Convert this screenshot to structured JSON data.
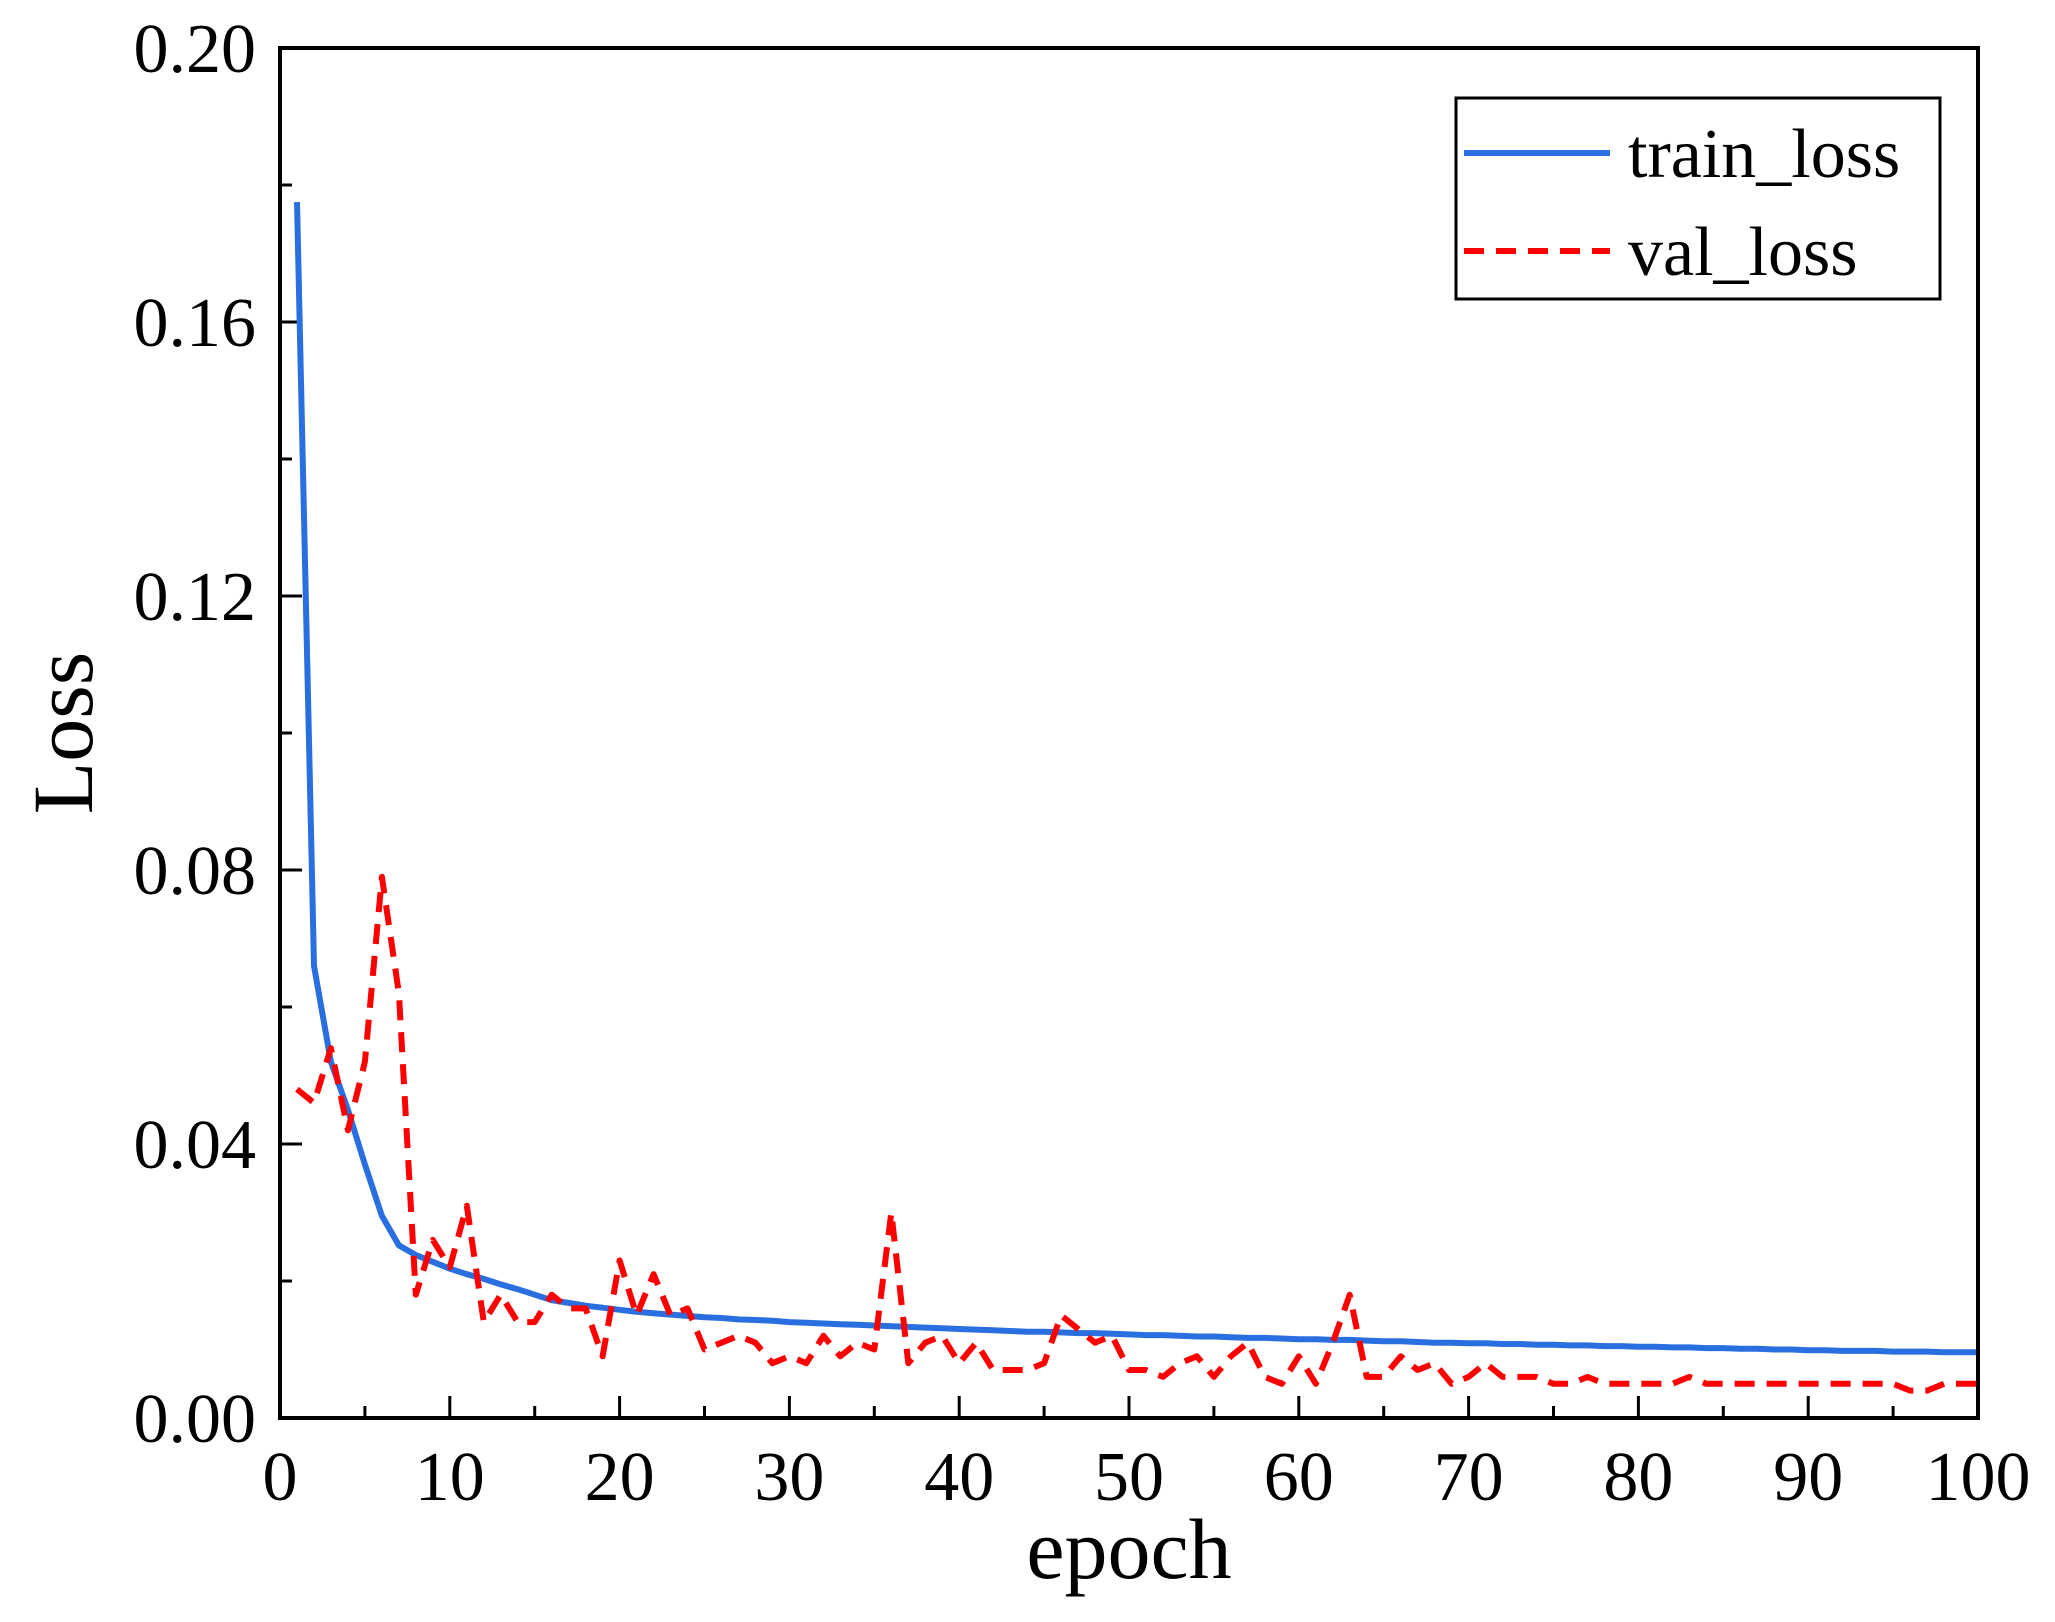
{
  "chart_data": {
    "type": "line",
    "title": "",
    "xlabel": "epoch",
    "ylabel": "Loss",
    "xlim": [
      0,
      100
    ],
    "ylim": [
      0,
      0.2
    ],
    "xticks": [
      0,
      10,
      20,
      30,
      40,
      50,
      60,
      70,
      80,
      90,
      100
    ],
    "xtick_labels": [
      "0",
      "10",
      "20",
      "30",
      "40",
      "50",
      "60",
      "70",
      "80",
      "90",
      "100"
    ],
    "yticks": [
      0,
      0.04,
      0.08,
      0.12,
      0.16,
      0.2
    ],
    "ytick_labels": [
      "0.00",
      "0.04",
      "0.08",
      "0.12",
      "0.16",
      "0.20"
    ],
    "grid": false,
    "legend_position": "top-right",
    "series": [
      {
        "name": "train_loss",
        "color": "#2a6fe0",
        "style": "solid",
        "x": [
          1,
          2,
          3,
          4,
          5,
          6,
          7,
          8,
          9,
          10,
          11,
          12,
          13,
          14,
          15,
          16,
          17,
          18,
          19,
          20,
          21,
          22,
          23,
          24,
          25,
          26,
          27,
          28,
          29,
          30,
          31,
          32,
          33,
          34,
          35,
          36,
          37,
          38,
          39,
          40,
          41,
          42,
          43,
          44,
          45,
          46,
          47,
          48,
          49,
          50,
          51,
          52,
          53,
          54,
          55,
          56,
          57,
          58,
          59,
          60,
          61,
          62,
          63,
          64,
          65,
          66,
          67,
          68,
          69,
          70,
          71,
          72,
          73,
          74,
          75,
          76,
          77,
          78,
          79,
          80,
          81,
          82,
          83,
          84,
          85,
          86,
          87,
          88,
          89,
          90,
          91,
          92,
          93,
          94,
          95,
          96,
          97,
          98,
          99,
          100
        ],
        "values": [
          0.1775,
          0.066,
          0.052,
          0.045,
          0.037,
          0.0295,
          0.0252,
          0.0238,
          0.0228,
          0.0218,
          0.021,
          0.0203,
          0.0195,
          0.0188,
          0.018,
          0.0172,
          0.0168,
          0.0164,
          0.0161,
          0.0158,
          0.0155,
          0.0153,
          0.0151,
          0.0149,
          0.0147,
          0.0146,
          0.0144,
          0.0143,
          0.0142,
          0.014,
          0.0139,
          0.0138,
          0.0137,
          0.0136,
          0.0135,
          0.0134,
          0.0133,
          0.0132,
          0.0131,
          0.013,
          0.0129,
          0.0128,
          0.0127,
          0.0126,
          0.0126,
          0.0125,
          0.0124,
          0.0124,
          0.0123,
          0.0122,
          0.0121,
          0.0121,
          0.012,
          0.0119,
          0.0119,
          0.0118,
          0.0117,
          0.0117,
          0.0116,
          0.0115,
          0.0115,
          0.0114,
          0.0114,
          0.0113,
          0.0112,
          0.0112,
          0.0111,
          0.011,
          0.011,
          0.0109,
          0.0109,
          0.0108,
          0.0108,
          0.0107,
          0.0107,
          0.0106,
          0.0106,
          0.0105,
          0.0105,
          0.0104,
          0.0104,
          0.0103,
          0.0103,
          0.0102,
          0.0102,
          0.0101,
          0.0101,
          0.01,
          0.01,
          0.0099,
          0.0099,
          0.0098,
          0.0098,
          0.0098,
          0.0097,
          0.0097,
          0.0097,
          0.0096,
          0.0096,
          0.0096
        ]
      },
      {
        "name": "val_loss",
        "color": "#ff0000",
        "style": "dashed",
        "x": [
          1,
          2,
          3,
          4,
          5,
          6,
          7,
          8,
          9,
          10,
          11,
          12,
          13,
          14,
          15,
          16,
          17,
          18,
          19,
          20,
          21,
          22,
          23,
          24,
          25,
          26,
          27,
          28,
          29,
          30,
          31,
          32,
          33,
          34,
          35,
          36,
          37,
          38,
          39,
          40,
          41,
          42,
          43,
          44,
          45,
          46,
          47,
          48,
          49,
          50,
          51,
          52,
          53,
          54,
          55,
          56,
          57,
          58,
          59,
          60,
          61,
          62,
          63,
          64,
          65,
          66,
          67,
          68,
          69,
          70,
          71,
          72,
          73,
          74,
          75,
          76,
          77,
          78,
          79,
          80,
          81,
          82,
          83,
          84,
          85,
          86,
          87,
          88,
          89,
          90,
          91,
          92,
          93,
          94,
          95,
          96,
          97,
          98,
          99,
          100
        ],
        "values": [
          0.048,
          0.046,
          0.054,
          0.042,
          0.052,
          0.079,
          0.062,
          0.018,
          0.026,
          0.022,
          0.031,
          0.014,
          0.018,
          0.014,
          0.014,
          0.018,
          0.016,
          0.016,
          0.009,
          0.023,
          0.015,
          0.021,
          0.015,
          0.016,
          0.01,
          0.011,
          0.012,
          0.011,
          0.008,
          0.009,
          0.008,
          0.012,
          0.009,
          0.011,
          0.01,
          0.03,
          0.008,
          0.011,
          0.012,
          0.008,
          0.011,
          0.007,
          0.007,
          0.007,
          0.008,
          0.015,
          0.013,
          0.011,
          0.012,
          0.007,
          0.007,
          0.006,
          0.008,
          0.009,
          0.006,
          0.009,
          0.011,
          0.006,
          0.005,
          0.009,
          0.005,
          0.011,
          0.018,
          0.006,
          0.006,
          0.009,
          0.007,
          0.008,
          0.005,
          0.006,
          0.008,
          0.006,
          0.006,
          0.006,
          0.005,
          0.005,
          0.006,
          0.005,
          0.005,
          0.005,
          0.005,
          0.005,
          0.006,
          0.005,
          0.005,
          0.005,
          0.005,
          0.005,
          0.005,
          0.005,
          0.005,
          0.005,
          0.005,
          0.005,
          0.005,
          0.004,
          0.004,
          0.005,
          0.005,
          0.005
        ]
      }
    ]
  }
}
